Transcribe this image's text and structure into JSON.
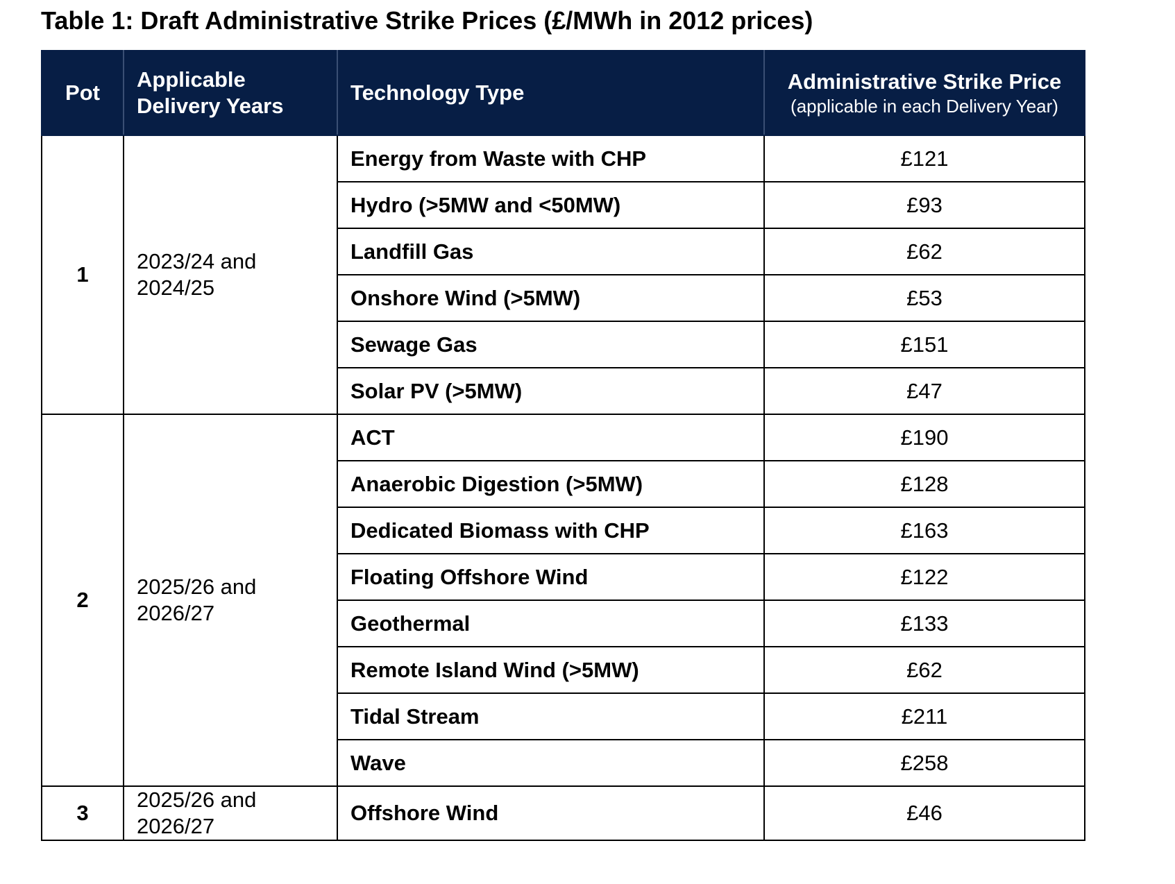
{
  "caption": "Table 1: Draft Administrative Strike Prices (£/MWh in 2012 prices)",
  "header": {
    "pot": "Pot",
    "years_line1": "Applicable",
    "years_line2": "Delivery Years",
    "technology": "Technology Type",
    "price": "Administrative Strike Price",
    "price_sub": "(applicable in each Delivery Year)"
  },
  "pots": [
    {
      "pot": "1",
      "years_line1": "2023/24 and",
      "years_line2": "2024/25",
      "rows": [
        {
          "technology": "Energy from Waste with CHP",
          "price": "£121"
        },
        {
          "technology": "Hydro (>5MW and <50MW)",
          "price": "£93"
        },
        {
          "technology": "Landfill Gas",
          "price": "£62"
        },
        {
          "technology": "Onshore Wind (>5MW)",
          "price": "£53"
        },
        {
          "technology": "Sewage Gas",
          "price": "£151"
        },
        {
          "technology": "Solar PV (>5MW)",
          "price": "£47"
        }
      ]
    },
    {
      "pot": "2",
      "years_line1": "2025/26 and",
      "years_line2": "2026/27",
      "rows": [
        {
          "technology": "ACT",
          "price": "£190"
        },
        {
          "technology": "Anaerobic Digestion (>5MW)",
          "price": "£128"
        },
        {
          "technology": "Dedicated Biomass with CHP",
          "price": "£163"
        },
        {
          "technology": "Floating Offshore Wind",
          "price": "£122"
        },
        {
          "technology": "Geothermal",
          "price": "£133"
        },
        {
          "technology": "Remote Island Wind (>5MW)",
          "price": "£62"
        },
        {
          "technology": "Tidal Stream",
          "price": "£211"
        },
        {
          "technology": "Wave",
          "price": "£258"
        }
      ]
    },
    {
      "pot": "3",
      "years_line1": "2025/26 and",
      "years_line2": "2026/27",
      "rows": [
        {
          "technology": "Offshore Wind",
          "price": "£46"
        }
      ]
    }
  ]
}
